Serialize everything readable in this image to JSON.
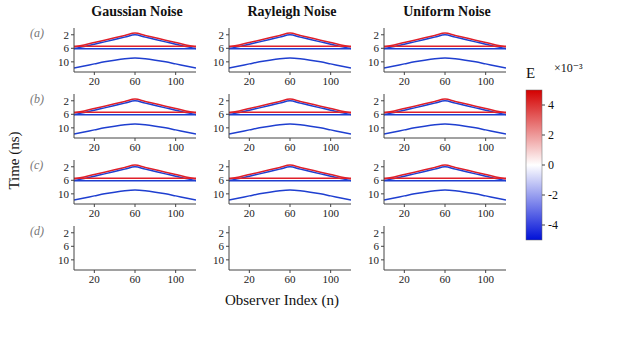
{
  "chart_data": {
    "type": "line",
    "x_label": "Observer Index (n)",
    "y_label": "Time (ns)",
    "columns": [
      "Gaussian Noise",
      "Rayleigh Noise",
      "Uniform Noise"
    ],
    "rows": [
      "(a)",
      "(b)",
      "(c)",
      "(d)"
    ],
    "x": [
      0,
      10,
      20,
      30,
      40,
      50,
      60,
      70,
      80,
      90,
      100,
      110,
      120
    ],
    "xlim": [
      0,
      120
    ],
    "ylim": [
      0,
      13
    ],
    "xticks": [
      20,
      60,
      100
    ],
    "yticks": [
      2,
      6,
      10
    ],
    "colorbar": {
      "label": "E",
      "scale": "×10⁻³",
      "range": [
        -5,
        5
      ],
      "ticks": [
        -4,
        -2,
        0,
        2,
        4
      ]
    },
    "panels": [
      [
        [
          {
            "color": "#e0202a",
            "values": [
              5.6,
              5.0,
              4.3,
              3.6,
              2.9,
              2.2,
              1.5,
              2.2,
              2.9,
              3.6,
              4.3,
              5.0,
              5.6
            ]
          },
          {
            "color": "#1f3fd0",
            "values": [
              6.1,
              5.5,
              4.8,
              4.1,
              3.4,
              2.7,
              2.0,
              2.7,
              3.4,
              4.1,
              4.8,
              5.5,
              6.1
            ]
          },
          {
            "color": "#e0202a",
            "values": [
              5.4,
              5.4,
              5.4,
              5.4,
              5.4,
              5.4,
              5.4,
              5.4,
              5.4,
              5.4,
              5.4,
              5.4,
              5.4
            ]
          },
          {
            "color": "#1f3fd0",
            "values": [
              6.1,
              6.1,
              6.1,
              6.1,
              6.1,
              6.1,
              6.1,
              6.1,
              6.1,
              6.1,
              6.1,
              6.1,
              6.1
            ]
          },
          {
            "color": "#1f3fd0",
            "values": [
              11.8,
              11.2,
              10.6,
              10.0,
              9.5,
              9.1,
              8.9,
              9.1,
              9.5,
              10.0,
              10.6,
              11.2,
              11.8
            ]
          }
        ],
        [
          {
            "color": "#e0202a",
            "values": [
              5.6,
              5.0,
              4.3,
              3.6,
              2.9,
              2.2,
              1.5,
              2.2,
              2.9,
              3.6,
              4.3,
              5.0,
              5.6
            ]
          },
          {
            "color": "#1f3fd0",
            "values": [
              6.1,
              5.5,
              4.8,
              4.1,
              3.4,
              2.7,
              2.0,
              2.7,
              3.4,
              4.1,
              4.8,
              5.5,
              6.1
            ]
          },
          {
            "color": "#e0202a",
            "values": [
              5.4,
              5.4,
              5.4,
              5.4,
              5.4,
              5.4,
              5.4,
              5.4,
              5.4,
              5.4,
              5.4,
              5.4,
              5.4
            ]
          },
          {
            "color": "#1f3fd0",
            "values": [
              6.1,
              6.1,
              6.1,
              6.1,
              6.1,
              6.1,
              6.1,
              6.1,
              6.1,
              6.1,
              6.1,
              6.1,
              6.1
            ]
          },
          {
            "color": "#1f3fd0",
            "values": [
              11.8,
              11.2,
              10.6,
              10.0,
              9.5,
              9.1,
              8.9,
              9.1,
              9.5,
              10.0,
              10.6,
              11.2,
              11.8
            ]
          }
        ],
        [
          {
            "color": "#e0202a",
            "values": [
              5.6,
              5.0,
              4.3,
              3.6,
              2.9,
              2.2,
              1.5,
              2.2,
              2.9,
              3.6,
              4.3,
              5.0,
              5.6
            ]
          },
          {
            "color": "#1f3fd0",
            "values": [
              6.1,
              5.5,
              4.8,
              4.1,
              3.4,
              2.7,
              2.0,
              2.7,
              3.4,
              4.1,
              4.8,
              5.5,
              6.1
            ]
          },
          {
            "color": "#e0202a",
            "values": [
              5.4,
              5.4,
              5.4,
              5.4,
              5.4,
              5.4,
              5.4,
              5.4,
              5.4,
              5.4,
              5.4,
              5.4,
              5.4
            ]
          },
          {
            "color": "#1f3fd0",
            "values": [
              6.1,
              6.1,
              6.1,
              6.1,
              6.1,
              6.1,
              6.1,
              6.1,
              6.1,
              6.1,
              6.1,
              6.1,
              6.1
            ]
          },
          {
            "color": "#1f3fd0",
            "values": [
              11.8,
              11.2,
              10.6,
              10.0,
              9.5,
              9.1,
              8.9,
              9.1,
              9.5,
              10.0,
              10.6,
              11.2,
              11.8
            ]
          }
        ]
      ],
      [
        [
          {
            "color": "#e0202a",
            "values": [
              5.6,
              5.0,
              4.3,
              3.6,
              2.9,
              2.2,
              1.5,
              2.2,
              2.9,
              3.6,
              4.3,
              5.0,
              5.6
            ]
          },
          {
            "color": "#1f3fd0",
            "values": [
              6.1,
              5.5,
              4.8,
              4.1,
              3.4,
              2.7,
              2.0,
              2.7,
              3.4,
              4.1,
              4.8,
              5.5,
              6.1
            ]
          },
          {
            "color": "#e0202a",
            "values": [
              5.4,
              5.4,
              5.4,
              5.4,
              5.4,
              5.4,
              5.4,
              5.4,
              5.4,
              5.4,
              5.4,
              5.4,
              5.4
            ]
          },
          {
            "color": "#1f3fd0",
            "values": [
              6.1,
              6.1,
              6.1,
              6.1,
              6.1,
              6.1,
              6.1,
              6.1,
              6.1,
              6.1,
              6.1,
              6.1,
              6.1
            ]
          },
          {
            "color": "#1f3fd0",
            "values": [
              11.8,
              11.2,
              10.6,
              10.0,
              9.5,
              9.1,
              8.9,
              9.1,
              9.5,
              10.0,
              10.6,
              11.2,
              11.8
            ]
          }
        ],
        [
          {
            "color": "#e0202a",
            "values": [
              5.6,
              5.0,
              4.3,
              3.6,
              2.9,
              2.2,
              1.5,
              2.2,
              2.9,
              3.6,
              4.3,
              5.0,
              5.6
            ]
          },
          {
            "color": "#1f3fd0",
            "values": [
              6.1,
              5.5,
              4.8,
              4.1,
              3.4,
              2.7,
              2.0,
              2.7,
              3.4,
              4.1,
              4.8,
              5.5,
              6.1
            ]
          },
          {
            "color": "#e0202a",
            "values": [
              5.4,
              5.4,
              5.4,
              5.4,
              5.4,
              5.4,
              5.4,
              5.4,
              5.4,
              5.4,
              5.4,
              5.4,
              5.4
            ]
          },
          {
            "color": "#1f3fd0",
            "values": [
              6.1,
              6.1,
              6.1,
              6.1,
              6.1,
              6.1,
              6.1,
              6.1,
              6.1,
              6.1,
              6.1,
              6.1,
              6.1
            ]
          },
          {
            "color": "#1f3fd0",
            "values": [
              11.8,
              11.2,
              10.6,
              10.0,
              9.5,
              9.1,
              8.9,
              9.1,
              9.5,
              10.0,
              10.6,
              11.2,
              11.8
            ]
          }
        ],
        [
          {
            "color": "#e0202a",
            "values": [
              5.6,
              5.0,
              4.3,
              3.6,
              2.9,
              2.2,
              1.5,
              2.2,
              2.9,
              3.6,
              4.3,
              5.0,
              5.6
            ]
          },
          {
            "color": "#1f3fd0",
            "values": [
              6.1,
              5.5,
              4.8,
              4.1,
              3.4,
              2.7,
              2.0,
              2.7,
              3.4,
              4.1,
              4.8,
              5.5,
              6.1
            ]
          },
          {
            "color": "#e0202a",
            "values": [
              5.4,
              5.4,
              5.4,
              5.4,
              5.4,
              5.4,
              5.4,
              5.4,
              5.4,
              5.4,
              5.4,
              5.4,
              5.4
            ]
          },
          {
            "color": "#1f3fd0",
            "values": [
              6.1,
              6.1,
              6.1,
              6.1,
              6.1,
              6.1,
              6.1,
              6.1,
              6.1,
              6.1,
              6.1,
              6.1,
              6.1
            ]
          },
          {
            "color": "#1f3fd0",
            "values": [
              11.8,
              11.2,
              10.6,
              10.0,
              9.5,
              9.1,
              8.9,
              9.1,
              9.5,
              10.0,
              10.6,
              11.2,
              11.8
            ]
          }
        ]
      ],
      [
        [
          {
            "color": "#e0202a",
            "values": [
              5.6,
              5.0,
              4.3,
              3.6,
              2.9,
              2.2,
              1.5,
              2.2,
              2.9,
              3.6,
              4.3,
              5.0,
              5.6
            ]
          },
          {
            "color": "#1f3fd0",
            "values": [
              6.1,
              5.5,
              4.8,
              4.1,
              3.4,
              2.7,
              2.0,
              2.7,
              3.4,
              4.1,
              4.8,
              5.5,
              6.1
            ]
          },
          {
            "color": "#e0202a",
            "values": [
              5.4,
              5.4,
              5.4,
              5.4,
              5.4,
              5.4,
              5.4,
              5.4,
              5.4,
              5.4,
              5.4,
              5.4,
              5.4
            ]
          },
          {
            "color": "#1f3fd0",
            "values": [
              6.1,
              6.1,
              6.1,
              6.1,
              6.1,
              6.1,
              6.1,
              6.1,
              6.1,
              6.1,
              6.1,
              6.1,
              6.1
            ]
          },
          {
            "color": "#1f3fd0",
            "values": [
              11.8,
              11.2,
              10.6,
              10.0,
              9.5,
              9.1,
              8.9,
              9.1,
              9.5,
              10.0,
              10.6,
              11.2,
              11.8
            ]
          }
        ],
        [
          {
            "color": "#e0202a",
            "values": [
              5.6,
              5.0,
              4.3,
              3.6,
              2.9,
              2.2,
              1.5,
              2.2,
              2.9,
              3.6,
              4.3,
              5.0,
              5.6
            ]
          },
          {
            "color": "#1f3fd0",
            "values": [
              6.1,
              5.5,
              4.8,
              4.1,
              3.4,
              2.7,
              2.0,
              2.7,
              3.4,
              4.1,
              4.8,
              5.5,
              6.1
            ]
          },
          {
            "color": "#e0202a",
            "values": [
              5.4,
              5.4,
              5.4,
              5.4,
              5.4,
              5.4,
              5.4,
              5.4,
              5.4,
              5.4,
              5.4,
              5.4,
              5.4
            ]
          },
          {
            "color": "#1f3fd0",
            "values": [
              6.1,
              6.1,
              6.1,
              6.1,
              6.1,
              6.1,
              6.1,
              6.1,
              6.1,
              6.1,
              6.1,
              6.1,
              6.1
            ]
          },
          {
            "color": "#1f3fd0",
            "values": [
              11.8,
              11.2,
              10.6,
              10.0,
              9.5,
              9.1,
              8.9,
              9.1,
              9.5,
              10.0,
              10.6,
              11.2,
              11.8
            ]
          }
        ],
        [
          {
            "color": "#e0202a",
            "values": [
              5.6,
              5.0,
              4.3,
              3.6,
              2.9,
              2.2,
              1.5,
              2.2,
              2.9,
              3.6,
              4.3,
              5.0,
              5.6
            ]
          },
          {
            "color": "#1f3fd0",
            "values": [
              6.1,
              5.5,
              4.8,
              4.1,
              3.4,
              2.7,
              2.0,
              2.7,
              3.4,
              4.1,
              4.8,
              5.5,
              6.1
            ]
          },
          {
            "color": "#e0202a",
            "values": [
              5.4,
              5.4,
              5.4,
              5.4,
              5.4,
              5.4,
              5.4,
              5.4,
              5.4,
              5.4,
              5.4,
              5.4,
              5.4
            ]
          },
          {
            "color": "#1f3fd0",
            "values": [
              6.1,
              6.1,
              6.1,
              6.1,
              6.1,
              6.1,
              6.1,
              6.1,
              6.1,
              6.1,
              6.1,
              6.1,
              6.1
            ]
          },
          {
            "color": "#1f3fd0",
            "values": [
              11.8,
              11.2,
              10.6,
              10.0,
              9.5,
              9.1,
              8.9,
              9.1,
              9.5,
              10.0,
              10.6,
              11.2,
              11.8
            ]
          }
        ]
      ],
      [
        [],
        [],
        []
      ]
    ]
  }
}
